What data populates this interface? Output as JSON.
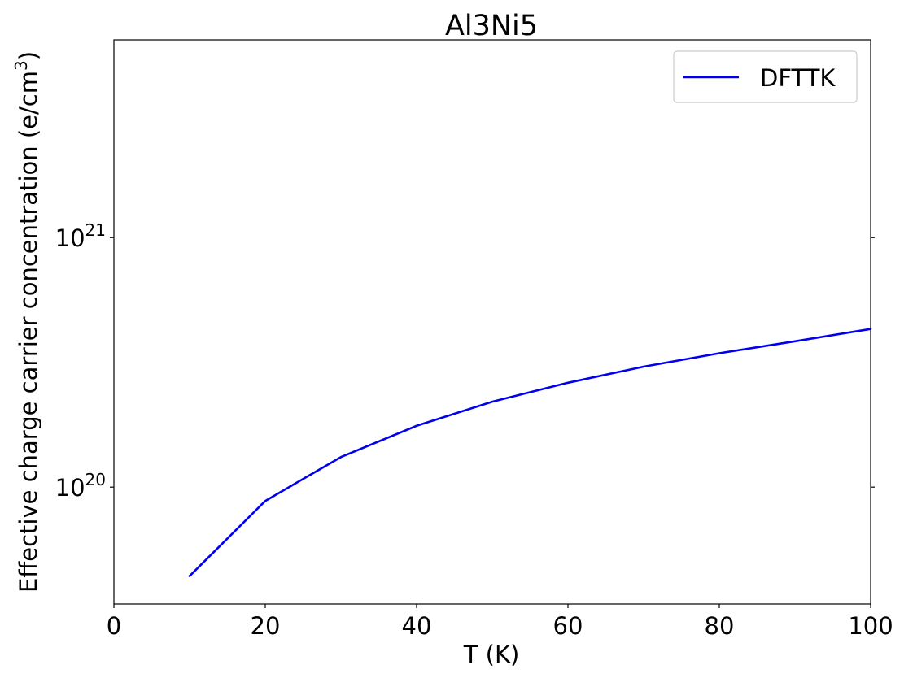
{
  "chart_data": {
    "type": "line",
    "title": "Al3Ni5",
    "xlabel": "T (K)",
    "ylabel": "Effective charge carrier concentration (e/cm",
    "ylabel_sup": "3",
    "ylabel_close": ")",
    "xlim": [
      0,
      100
    ],
    "ylim": [
      3.4e+19,
      6.2e+21
    ],
    "yscale": "log",
    "xticks": [
      0,
      20,
      40,
      60,
      80,
      100
    ],
    "xtick_labels": [
      "0",
      "20",
      "40",
      "60",
      "80",
      "100"
    ],
    "yticks": [
      1e+20,
      1e+21
    ],
    "ytick_labels": [
      {
        "base": "10",
        "exp": "20"
      },
      {
        "base": "10",
        "exp": "21"
      }
    ],
    "grid": false,
    "legend_position": "top-right",
    "series": [
      {
        "name": "DFTTK",
        "color": "#0000ee",
        "x": [
          10,
          20,
          30,
          40,
          50,
          60,
          70,
          80,
          90,
          100
        ],
        "y": [
          4.4e+19,
          8.8e+19,
          1.32e+20,
          1.76e+20,
          2.2e+20,
          2.62e+20,
          3.04e+20,
          3.44e+20,
          3.84e+20,
          4.3e+20
        ]
      }
    ]
  }
}
